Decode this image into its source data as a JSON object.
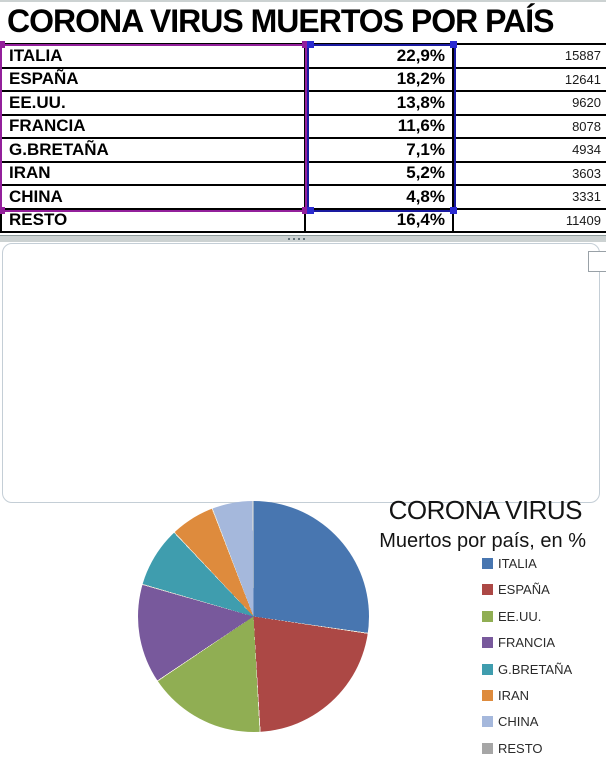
{
  "page_title": "CORONA VIRUS MUERTOS POR PAÍS",
  "table": {
    "rows": [
      {
        "country": "ITALIA",
        "percent": "22,9%",
        "deaths": "15887"
      },
      {
        "country": "ESPAÑA",
        "percent": "18,2%",
        "deaths": "12641"
      },
      {
        "country": "EE.UU.",
        "percent": "13,8%",
        "deaths": "9620"
      },
      {
        "country": "FRANCIA",
        "percent": "11,6%",
        "deaths": "8078"
      },
      {
        "country": "G.BRETAÑA",
        "percent": "7,1%",
        "deaths": "4934"
      },
      {
        "country": "IRAN",
        "percent": "5,2%",
        "deaths": "3603"
      },
      {
        "country": "CHINA",
        "percent": "4,8%",
        "deaths": "3331"
      },
      {
        "country": "RESTO",
        "percent": "16,4%",
        "deaths": "11409"
      }
    ]
  },
  "chart": {
    "title": "CORONA VIRUS",
    "subtitle": "Muertos por país, en %",
    "legend": [
      {
        "label": "ITALIA",
        "color": "#4876B0"
      },
      {
        "label": "ESPAÑA",
        "color": "#AC4845"
      },
      {
        "label": "EE.UU.",
        "color": "#90AE53"
      },
      {
        "label": "FRANCIA",
        "color": "#78599C"
      },
      {
        "label": "G.BRETAÑA",
        "color": "#3F9DAE"
      },
      {
        "label": "IRAN",
        "color": "#DE8B3D"
      },
      {
        "label": "CHINA",
        "color": "#A5B8DC"
      },
      {
        "label": "RESTO",
        "color": "#A6A6A6"
      }
    ]
  },
  "chart_data": {
    "type": "pie",
    "title": "CORONA VIRUS",
    "subtitle": "Muertos por país, en %",
    "categories": [
      "ITALIA",
      "ESPAÑA",
      "EE.UU.",
      "FRANCIA",
      "G.BRETAÑA",
      "IRAN",
      "CHINA"
    ],
    "values": [
      22.9,
      18.2,
      13.8,
      11.6,
      7.1,
      5.2,
      4.8
    ],
    "colors": [
      "#4876B0",
      "#AC4845",
      "#90AE53",
      "#78599C",
      "#3F9DAE",
      "#DE8B3D",
      "#A5B8DC"
    ],
    "start_angle_deg": 0,
    "direction": "clockwise",
    "legend_position": "right",
    "excluded_category": {
      "label": "RESTO",
      "value": 16.4
    },
    "separator_color": "#ece7da"
  },
  "selection": {
    "category_range_color": "#93209B",
    "value_range_color": "#1A1AA0",
    "value_handle_color": "#2B2BD0"
  }
}
